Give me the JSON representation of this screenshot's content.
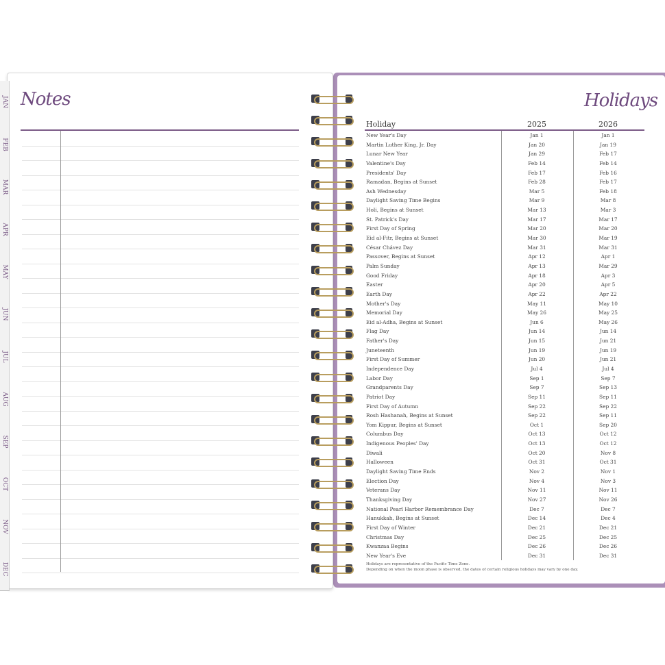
{
  "left_page": {
    "title": "Notes",
    "month_tabs": [
      "JAN",
      "FEB",
      "MAR",
      "APR",
      "MAY",
      "JUN",
      "JUL",
      "AUG",
      "SEP",
      "OCT",
      "NOV",
      "DEC"
    ]
  },
  "right_page": {
    "title": "Holidays",
    "columns": [
      "Holiday",
      "2025",
      "2026"
    ],
    "rows": [
      [
        "New Year's Day",
        "Jan 1",
        "Jan 1"
      ],
      [
        "Martin Luther King, Jr. Day",
        "Jan 20",
        "Jan 19"
      ],
      [
        "Lunar New Year",
        "Jan 29",
        "Feb 17"
      ],
      [
        "Valentine's Day",
        "Feb 14",
        "Feb 14"
      ],
      [
        "Presidents' Day",
        "Feb 17",
        "Feb 16"
      ],
      [
        "Ramadan, Begins at Sunset",
        "Feb 28",
        "Feb 17"
      ],
      [
        "Ash Wednesday",
        "Mar 5",
        "Feb 18"
      ],
      [
        "Daylight Saving Time Begins",
        "Mar 9",
        "Mar 8"
      ],
      [
        "Holi, Begins at Sunset",
        "Mar 13",
        "Mar 3"
      ],
      [
        "St. Patrick's Day",
        "Mar 17",
        "Mar 17"
      ],
      [
        "First Day of Spring",
        "Mar 20",
        "Mar 20"
      ],
      [
        "Eid al-Fitr, Begins at Sunset",
        "Mar 30",
        "Mar 19"
      ],
      [
        "César Chávez Day",
        "Mar 31",
        "Mar 31"
      ],
      [
        "Passover, Begins at Sunset",
        "Apr 12",
        "Apr 1"
      ],
      [
        "Palm Sunday",
        "Apr 13",
        "Mar 29"
      ],
      [
        "Good Friday",
        "Apr 18",
        "Apr 3"
      ],
      [
        "Easter",
        "Apr 20",
        "Apr 5"
      ],
      [
        "Earth Day",
        "Apr 22",
        "Apr 22"
      ],
      [
        "Mother's Day",
        "May 11",
        "May 10"
      ],
      [
        "Memorial Day",
        "May 26",
        "May 25"
      ],
      [
        "Eid al-Adha, Begins at Sunset",
        "Jun 6",
        "May 26"
      ],
      [
        "Flag Day",
        "Jun 14",
        "Jun 14"
      ],
      [
        "Father's Day",
        "Jun 15",
        "Jun 21"
      ],
      [
        "Juneteenth",
        "Jun 19",
        "Jun 19"
      ],
      [
        "First Day of Summer",
        "Jun 20",
        "Jun 21"
      ],
      [
        "Independence Day",
        "Jul 4",
        "Jul 4"
      ],
      [
        "Labor Day",
        "Sep 1",
        "Sep 7"
      ],
      [
        "Grandparents Day",
        "Sep 7",
        "Sep 13"
      ],
      [
        "Patriot Day",
        "Sep 11",
        "Sep 11"
      ],
      [
        "First Day of Autumn",
        "Sep 22",
        "Sep 22"
      ],
      [
        "Rosh Hashanah, Begins at Sunset",
        "Sep 22",
        "Sep 11"
      ],
      [
        "Yom Kippur, Begins at Sunset",
        "Oct 1",
        "Sep 20"
      ],
      [
        "Columbus Day",
        "Oct 13",
        "Oct 12"
      ],
      [
        "Indigenous Peoples' Day",
        "Oct 13",
        "Oct 12"
      ],
      [
        "Diwali",
        "Oct 20",
        "Nov 8"
      ],
      [
        "Halloween",
        "Oct 31",
        "Oct 31"
      ],
      [
        "Daylight Saving Time Ends",
        "Nov 2",
        "Nov 1"
      ],
      [
        "Election Day",
        "Nov 4",
        "Nov 3"
      ],
      [
        "Veterans Day",
        "Nov 11",
        "Nov 11"
      ],
      [
        "Thanksgiving Day",
        "Nov 27",
        "Nov 26"
      ],
      [
        "National Pearl Harbor Remembrance Day",
        "Dec 7",
        "Dec 7"
      ],
      [
        "Hanukkah, Begins at Sunset",
        "Dec 14",
        "Dec 4"
      ],
      [
        "First Day of Winter",
        "Dec 21",
        "Dec 21"
      ],
      [
        "Christmas Day",
        "Dec 25",
        "Dec 25"
      ],
      [
        "Kwanzaa Begins",
        "Dec 26",
        "Dec 26"
      ],
      [
        "New Year's Eve",
        "Dec 31",
        "Dec 31"
      ]
    ],
    "footnotes": [
      "Holidays are representative of the Pacific Time Zone.",
      "Depending on when the moon phase is observed, the dates of certain religious holidays may vary by one day."
    ]
  },
  "colors": {
    "accent": "#7a5a86",
    "cover": "#ab8fb8",
    "wire": "#b89d5e"
  }
}
